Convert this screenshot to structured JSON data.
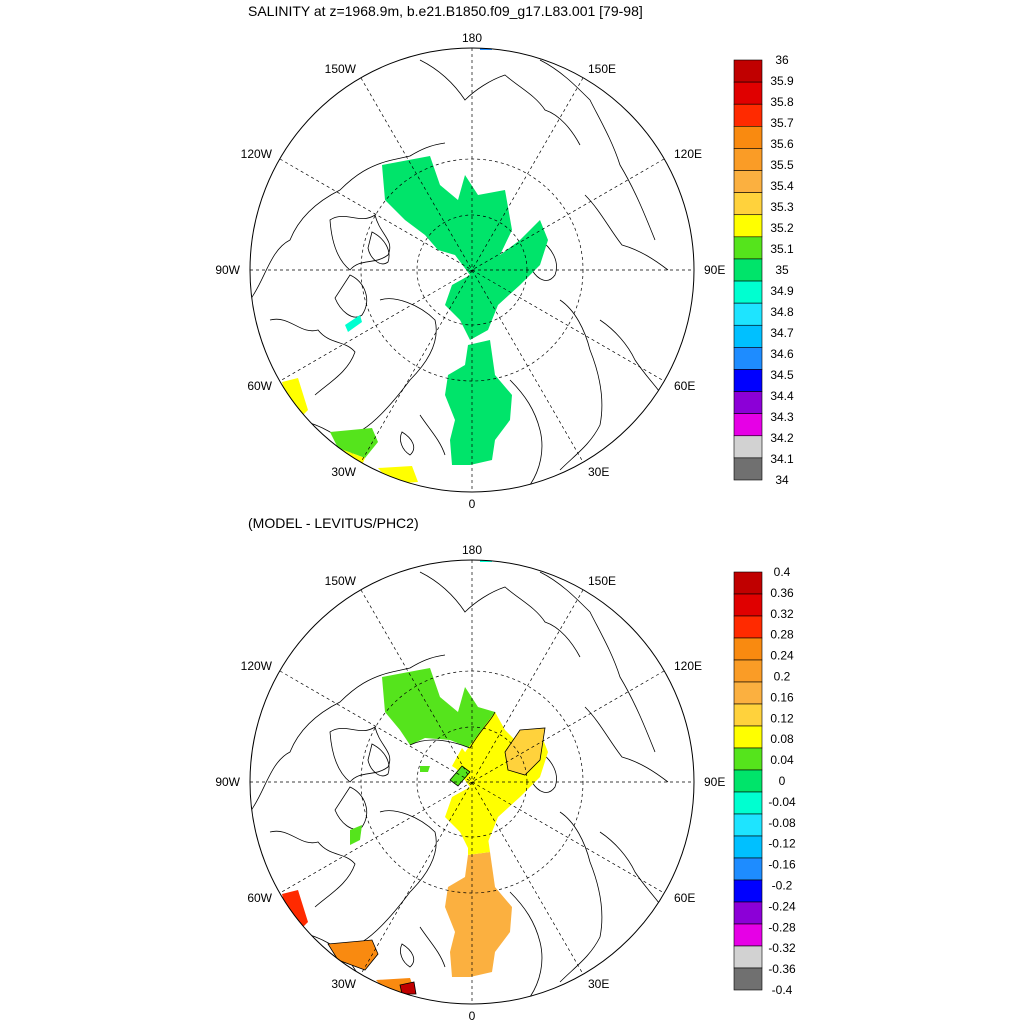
{
  "panels": [
    {
      "title": "SALINITY at z=1968.9m, b.e21.B1850.f09_g17.L83.001 [79-98]",
      "colorbar_labels": [
        "36",
        "35.9",
        "35.8",
        "35.7",
        "35.6",
        "35.5",
        "35.4",
        "35.3",
        "35.2",
        "35.1",
        "35",
        "34.9",
        "34.8",
        "34.7",
        "34.6",
        "34.5",
        "34.4",
        "34.3",
        "34.2",
        "34.1",
        "34"
      ],
      "colorbar_colors": [
        "#c00000",
        "#e00000",
        "#ff2a00",
        "#f98a10",
        "#fa9c26",
        "#fbb040",
        "#ffd23c",
        "#ffff00",
        "#55e41c",
        "#00e46a",
        "#00ffd0",
        "#1ee4ff",
        "#00c0ff",
        "#1e8cff",
        "#0000ff",
        "#8c00d7",
        "#e600e6",
        "#d2d2d2",
        "#707070"
      ]
    },
    {
      "title": "(MODEL - LEVITUS/PHC2)",
      "colorbar_labels": [
        "0.4",
        "0.36",
        "0.32",
        "0.28",
        "0.24",
        "0.2",
        "0.16",
        "0.12",
        "0.08",
        "0.04",
        "0",
        "-0.04",
        "-0.08",
        "-0.12",
        "-0.16",
        "-0.2",
        "-0.24",
        "-0.28",
        "-0.32",
        "-0.36",
        "-0.4"
      ],
      "colorbar_colors": [
        "#c00000",
        "#e00000",
        "#ff2a00",
        "#f98a10",
        "#fa9c26",
        "#fbb040",
        "#ffd23c",
        "#ffff00",
        "#55e41c",
        "#00e46a",
        "#00ffd0",
        "#1ee4ff",
        "#00c0ff",
        "#1e8cff",
        "#0000ff",
        "#8c00d7",
        "#e600e6",
        "#d2d2d2",
        "#707070"
      ]
    }
  ],
  "map_labels": {
    "top": "180",
    "bottom": "0",
    "left": "90W",
    "right": "90E",
    "ul1": "150W",
    "ul2": "120W",
    "ur1": "150E",
    "ur2": "120E",
    "ll1": "60W",
    "ll2": "30W",
    "lr1": "60E",
    "lr2": "30E"
  }
}
